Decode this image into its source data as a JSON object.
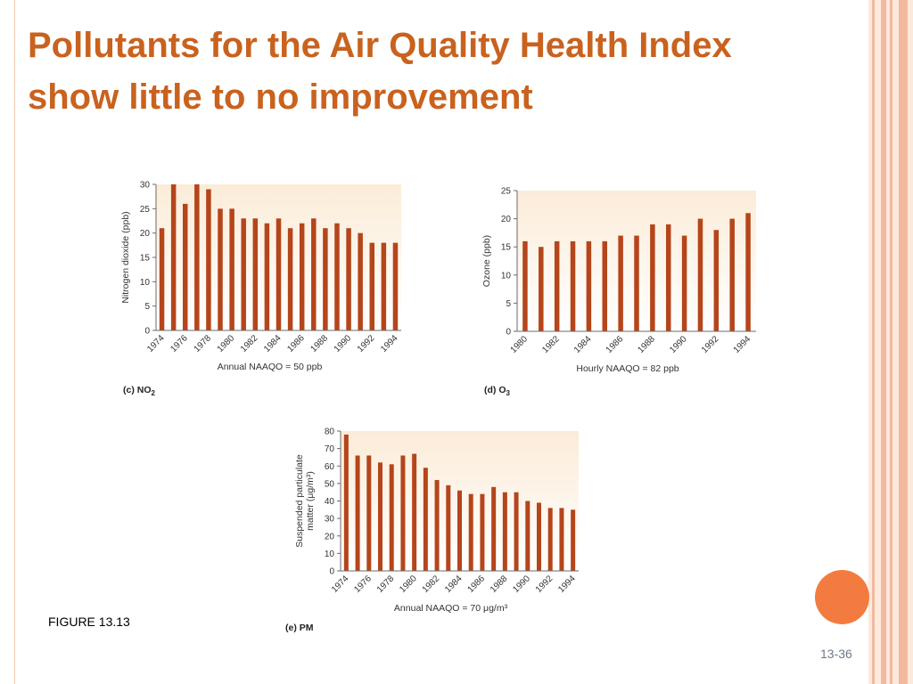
{
  "slide": {
    "title_line1": "Pollutants for the Air Quality Health Index",
    "title_line2": "show little to no improvement",
    "figure_label": "FIGURE 13.13",
    "page_number": "13-36"
  },
  "colors": {
    "title": "#c9621e",
    "bar": "#b5451b",
    "plot_bg_top": "#fbecd8",
    "accent_dot": "#f47b3f",
    "stripe": "#f3b9a0"
  },
  "chart_data": [
    {
      "id": "no2",
      "type": "bar",
      "panel_label": "(c) NO",
      "panel_label_sub": "2",
      "ylabel": "Nitrogen dioxide (ppb)",
      "xlabel": "Annual NAAQO = 50 ppb",
      "ylim": [
        0,
        30
      ],
      "yticks": [
        0,
        5,
        10,
        15,
        20,
        25,
        30
      ],
      "categories": [
        "1974",
        "1975",
        "1976",
        "1977",
        "1978",
        "1979",
        "1980",
        "1981",
        "1982",
        "1983",
        "1984",
        "1985",
        "1986",
        "1987",
        "1988",
        "1989",
        "1990",
        "1991",
        "1992",
        "1993",
        "1994"
      ],
      "tick_labels": [
        "1974",
        "1976",
        "1978",
        "1980",
        "1982",
        "1984",
        "1986",
        "1988",
        "1990",
        "1992",
        "1994"
      ],
      "values": [
        21,
        30,
        26,
        30,
        29,
        25,
        25,
        23,
        23,
        22,
        23,
        21,
        22,
        23,
        21,
        22,
        21,
        20,
        18,
        18,
        18
      ]
    },
    {
      "id": "o3",
      "type": "bar",
      "panel_label": "(d) O",
      "panel_label_sub": "3",
      "ylabel": "Ozone (ppb)",
      "xlabel": "Hourly NAAQO = 82 ppb",
      "ylim": [
        0,
        25
      ],
      "yticks": [
        0,
        5,
        10,
        15,
        20,
        25
      ],
      "categories": [
        "1980",
        "1981",
        "1982",
        "1983",
        "1984",
        "1985",
        "1986",
        "1987",
        "1988",
        "1989",
        "1990",
        "1991",
        "1992",
        "1993",
        "1994"
      ],
      "tick_labels": [
        "1980",
        "1982",
        "1984",
        "1986",
        "1988",
        "1990",
        "1992",
        "1994"
      ],
      "values": [
        16,
        15,
        16,
        16,
        16,
        16,
        17,
        17,
        19,
        19,
        17,
        20,
        18,
        20,
        21
      ]
    },
    {
      "id": "pm",
      "type": "bar",
      "panel_label": "(e) PM",
      "panel_label_sub": "",
      "ylabel_line1": "Suspended particulate",
      "ylabel_line2": "matter (μg/m³)",
      "xlabel": "Annual NAAQO = 70 μg/m³",
      "ylim": [
        0,
        80
      ],
      "yticks": [
        0,
        10,
        20,
        30,
        40,
        50,
        60,
        70,
        80
      ],
      "categories": [
        "1974",
        "1975",
        "1976",
        "1977",
        "1978",
        "1979",
        "1980",
        "1981",
        "1982",
        "1983",
        "1984",
        "1985",
        "1986",
        "1987",
        "1988",
        "1989",
        "1990",
        "1991",
        "1992",
        "1993",
        "1994"
      ],
      "tick_labels": [
        "1974",
        "1976",
        "1978",
        "1980",
        "1982",
        "1984",
        "1986",
        "1988",
        "1990",
        "1992",
        "1994"
      ],
      "values": [
        78,
        66,
        66,
        62,
        61,
        66,
        67,
        59,
        52,
        49,
        46,
        44,
        44,
        48,
        45,
        45,
        40,
        39,
        36,
        36,
        35
      ]
    }
  ]
}
